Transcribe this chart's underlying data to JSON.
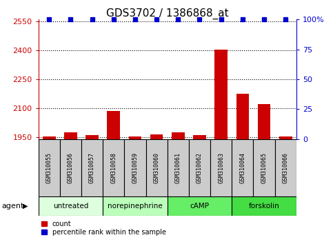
{
  "title": "GDS3702 / 1386868_at",
  "samples": [
    "GSM310055",
    "GSM310056",
    "GSM310057",
    "GSM310058",
    "GSM310059",
    "GSM310060",
    "GSM310061",
    "GSM310062",
    "GSM310063",
    "GSM310064",
    "GSM310065",
    "GSM310066"
  ],
  "count_values": [
    1952,
    1975,
    1960,
    2085,
    1952,
    1963,
    1975,
    1962,
    2405,
    2175,
    2120,
    1952
  ],
  "percentile_values": [
    100,
    100,
    100,
    100,
    100,
    100,
    100,
    100,
    100,
    100,
    100,
    100
  ],
  "ylim_left": [
    1940,
    2560
  ],
  "ylim_right": [
    0,
    100
  ],
  "yticks_left": [
    1950,
    2100,
    2250,
    2400,
    2550
  ],
  "yticks_right": [
    0,
    25,
    50,
    75,
    100
  ],
  "ytick_labels_right": [
    "0",
    "25",
    "50",
    "75",
    "100%"
  ],
  "bar_color": "#cc0000",
  "dot_color": "#0000cc",
  "agent_groups": [
    {
      "label": "untreated",
      "start": 0,
      "end": 3,
      "color": "#ddffdd"
    },
    {
      "label": "norepinephrine",
      "start": 3,
      "end": 6,
      "color": "#bbffbb"
    },
    {
      "label": "cAMP",
      "start": 6,
      "end": 9,
      "color": "#66ee66"
    },
    {
      "label": "forskolin",
      "start": 9,
      "end": 12,
      "color": "#44dd44"
    }
  ],
  "sample_box_color": "#cccccc",
  "legend_count_label": "count",
  "legend_percentile_label": "percentile rank within the sample",
  "agent_label": "agent",
  "title_fontsize": 11,
  "tick_fontsize": 8,
  "bar_width": 0.6
}
